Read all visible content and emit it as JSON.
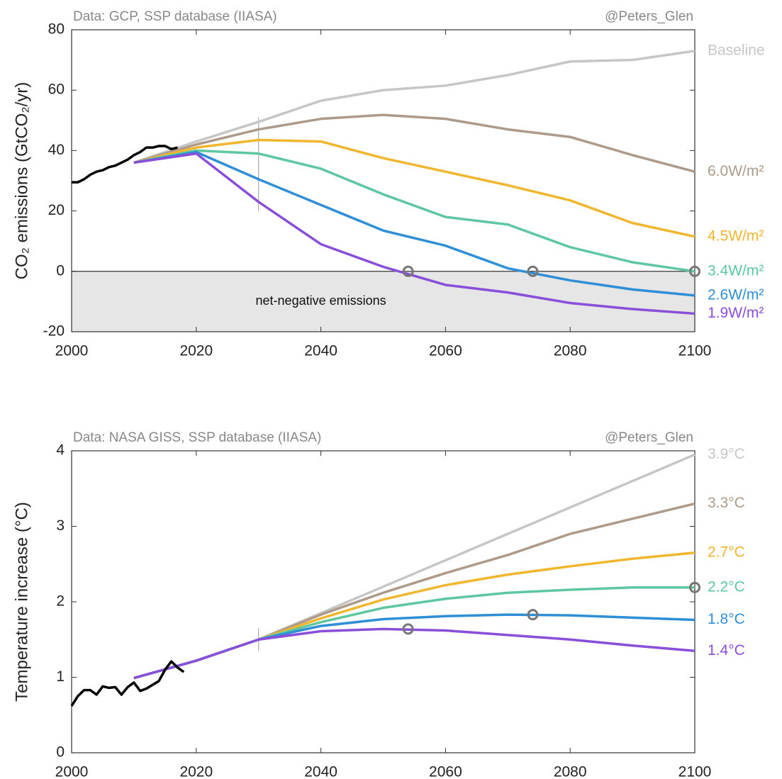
{
  "chart_data": [
    {
      "type": "line",
      "source": "Data: GCP, SSP database (IIASA)",
      "credit": "@Peters_Glen",
      "y_label": "CO₂ emissions (GtCO₂/yr)",
      "annotation": {
        "text": "net-negative emissions",
        "x": 2040,
        "y": -10
      },
      "shade_below": 0,
      "xlim": [
        2000,
        2100
      ],
      "xticks": [
        2000,
        2020,
        2040,
        2060,
        2080,
        2100
      ],
      "ylim": [
        -20,
        80
      ],
      "yticks": [
        -20,
        0,
        20,
        40,
        60,
        80
      ],
      "observed": {
        "color": "#000000",
        "x": [
          2000,
          2001,
          2002,
          2003,
          2004,
          2005,
          2006,
          2007,
          2008,
          2009,
          2010,
          2011,
          2012,
          2013,
          2014,
          2015,
          2016,
          2017
        ],
        "values": [
          29.5,
          29.5,
          30.5,
          32,
          33,
          33.5,
          34.5,
          35,
          36,
          37,
          38.5,
          39.5,
          41,
          41,
          41.5,
          41.5,
          40.5,
          41
        ]
      },
      "x": [
        2010,
        2020,
        2030,
        2040,
        2050,
        2060,
        2070,
        2080,
        2090,
        2100
      ],
      "series": [
        {
          "name": "Baseline",
          "color": "#c6c6c6",
          "values": [
            36,
            43,
            49.5,
            56.5,
            60,
            61.5,
            65,
            69.5,
            70,
            73
          ]
        },
        {
          "name": "6.0W/m²",
          "color": "#ad9a8b",
          "values": [
            36,
            42,
            47,
            50.5,
            51.8,
            50.5,
            47,
            44.5,
            38.5,
            33
          ]
        },
        {
          "name": "4.5W/m²",
          "color": "#f0b62e",
          "values": [
            36,
            41,
            43.5,
            43,
            37.5,
            33,
            28.5,
            23.5,
            16,
            11.5
          ]
        },
        {
          "name": "3.4W/m²",
          "color": "#5ec7a0",
          "values": [
            36,
            40,
            39,
            34,
            25.5,
            18,
            15.5,
            8,
            3,
            0
          ]
        },
        {
          "name": "2.6W/m²",
          "color": "#2f8fd6",
          "values": [
            36,
            39.5,
            30.5,
            22,
            13.5,
            8.5,
            1,
            -3,
            -6,
            -8
          ]
        },
        {
          "name": "1.9W/m²",
          "color": "#8a4fd9",
          "values": [
            36,
            39,
            23,
            9,
            1.5,
            -4.5,
            -7,
            -10.5,
            -12.5,
            -14
          ]
        }
      ],
      "markers": {
        "x": [
          2054,
          2074,
          2100
        ],
        "values": [
          0,
          0,
          0
        ]
      },
      "vline": {
        "x": 2030,
        "range": [
          20,
          51
        ]
      }
    },
    {
      "type": "line",
      "source": "Data: NASA GISS, SSP database (IIASA)",
      "credit": "@Peters_Glen",
      "y_label": "Temperature increase (°C)",
      "xlim": [
        2000,
        2100
      ],
      "xticks": [
        2000,
        2020,
        2040,
        2060,
        2080,
        2100
      ],
      "ylim": [
        0,
        4
      ],
      "yticks": [
        0,
        1,
        2,
        3,
        4
      ],
      "observed": {
        "color": "#000000",
        "x": [
          2000,
          2001,
          2002,
          2003,
          2004,
          2005,
          2006,
          2007,
          2008,
          2009,
          2010,
          2011,
          2012,
          2013,
          2014,
          2015,
          2016,
          2017,
          2018
        ],
        "values": [
          0.62,
          0.75,
          0.83,
          0.83,
          0.77,
          0.88,
          0.86,
          0.87,
          0.77,
          0.87,
          0.93,
          0.82,
          0.85,
          0.9,
          0.95,
          1.1,
          1.21,
          1.13,
          1.07
        ]
      },
      "x": [
        2010,
        2020,
        2030,
        2040,
        2050,
        2060,
        2070,
        2080,
        2090,
        2100
      ],
      "series": [
        {
          "name": "3.9°C",
          "color": "#c6c6c6",
          "values": [
            0.99,
            1.22,
            1.5,
            1.85,
            2.2,
            2.55,
            2.9,
            3.25,
            3.6,
            3.95
          ]
        },
        {
          "name": "3.3°C",
          "color": "#ad9a8b",
          "values": [
            0.99,
            1.22,
            1.5,
            1.83,
            2.12,
            2.38,
            2.62,
            2.9,
            3.1,
            3.3
          ]
        },
        {
          "name": "2.7°C",
          "color": "#f0b62e",
          "values": [
            0.99,
            1.22,
            1.5,
            1.78,
            2.03,
            2.22,
            2.36,
            2.47,
            2.57,
            2.65
          ]
        },
        {
          "name": "2.2°C",
          "color": "#5ec7a0",
          "values": [
            0.99,
            1.22,
            1.5,
            1.73,
            1.92,
            2.04,
            2.12,
            2.16,
            2.19,
            2.19
          ]
        },
        {
          "name": "1.8°C",
          "color": "#2f8fd6",
          "values": [
            0.99,
            1.22,
            1.5,
            1.68,
            1.77,
            1.81,
            1.83,
            1.82,
            1.79,
            1.76
          ]
        },
        {
          "name": "1.4°C",
          "color": "#8a4fd9",
          "values": [
            0.99,
            1.22,
            1.5,
            1.61,
            1.64,
            1.62,
            1.56,
            1.5,
            1.42,
            1.35
          ]
        }
      ],
      "markers": {
        "x": [
          2054,
          2074,
          2100
        ],
        "values": [
          1.64,
          1.83,
          2.19
        ]
      },
      "vline": {
        "x": 2030,
        "range": [
          1.35,
          1.65
        ]
      }
    }
  ]
}
